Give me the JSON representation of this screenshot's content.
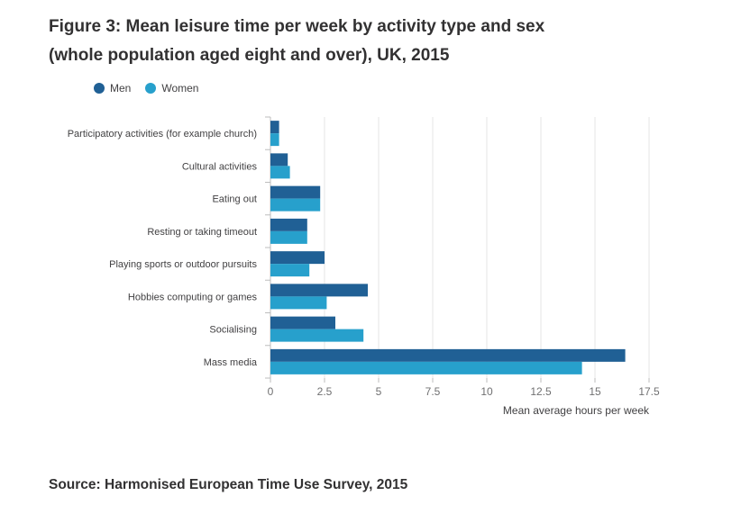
{
  "header": {
    "title_line1": "Figure 3: Mean leisure time per week by activity type and sex",
    "title_line2": "(whole population aged eight and over), UK, 2015"
  },
  "footer": {
    "source": "Source: Harmonised European Time Use Survey, 2015"
  },
  "colors": {
    "men": "#206095",
    "women": "#27a0cc"
  },
  "chart_data": {
    "type": "bar",
    "orientation": "horizontal",
    "title": "Figure 3: Mean leisure time per week by activity type and sex (whole population aged eight and over), UK, 2015",
    "categories": [
      "Participatory activities (for example church)",
      "Cultural activities",
      "Eating out",
      "Resting or taking timeout",
      "Playing sports or outdoor pursuits",
      "Hobbies computing or games",
      "Socialising",
      "Mass media"
    ],
    "series": [
      {
        "name": "Men",
        "values": [
          0.4,
          0.8,
          2.3,
          1.7,
          2.5,
          4.5,
          3.0,
          16.4
        ]
      },
      {
        "name": "Women",
        "values": [
          0.4,
          0.9,
          2.3,
          1.7,
          1.8,
          2.6,
          4.3,
          14.4
        ]
      }
    ],
    "xlabel": "Mean average hours per week",
    "ylabel": "",
    "xlim": [
      0,
      17.5
    ],
    "xticks": [
      "0",
      "2.5",
      "5",
      "7.5",
      "10",
      "12.5",
      "15",
      "17.5"
    ],
    "grid": true,
    "legend": "top-left"
  }
}
